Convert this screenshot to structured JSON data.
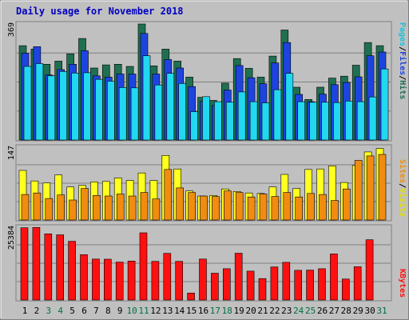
{
  "chart_data": {
    "type": "bar",
    "title": "Daily usage for November 2018",
    "days": [
      "1",
      "2",
      "3",
      "4",
      "5",
      "6",
      "7",
      "8",
      "9",
      "10",
      "11",
      "12",
      "13",
      "14",
      "15",
      "16",
      "17",
      "18",
      "19",
      "20",
      "21",
      "22",
      "23",
      "24",
      "25",
      "26",
      "27",
      "28",
      "29",
      "30",
      "31"
    ],
    "weekend_days": [
      3,
      4,
      10,
      11,
      17,
      18,
      24,
      25,
      31
    ],
    "colors": {
      "background": "#c0c0c0",
      "title": "#0000c0",
      "weekday_label": "#000000",
      "weekend_label": "#007040",
      "hits": "#1f7050",
      "files": "#1e44e0",
      "pages": "#22d8f0",
      "visits": "#ffff20",
      "sites": "#f08c10",
      "kbytes": "#ff1010"
    },
    "panels": [
      {
        "id": "hits",
        "ymax_label": "369",
        "ymax": 369,
        "series_labels": [
          {
            "text": "Pages",
            "color": "#20c0d8"
          },
          {
            "text": "/",
            "color": "#000000"
          },
          {
            "text": "Files",
            "color": "#1e44e0"
          },
          {
            "text": "/",
            "color": "#000000"
          },
          {
            "text": "Hits",
            "color": "#1f7050"
          }
        ],
        "series": [
          {
            "name": "Hits",
            "color": "#1f7050",
            "values": [
              300,
              289,
              241,
              251,
              274,
              323,
              229,
              239,
              241,
              234,
              369,
              236,
              289,
              251,
              200,
              136,
              126,
              181,
              259,
              228,
              200,
              267,
              350,
              168,
              129,
              168,
              197,
              203,
              238,
              310,
              300
            ]
          },
          {
            "name": "Files",
            "color": "#1e44e0",
            "values": [
              276,
              297,
              207,
              224,
              241,
              284,
              204,
              200,
              210,
              210,
              339,
              210,
              256,
              229,
              170,
              123,
              110,
              159,
              237,
              198,
              179,
              245,
              310,
              145,
              122,
              146,
              176,
              183,
              201,
              268,
              280
            ]
          },
          {
            "name": "Pages",
            "color": "#22d8f0",
            "values": [
              234,
              243,
              204,
              218,
              213,
              214,
              193,
              187,
              167,
              166,
              268,
              175,
              212,
              180,
              90,
              138,
              122,
              120,
              153,
              122,
              118,
              160,
              212,
              122,
              120,
              120,
              119,
              124,
              122,
              137,
              226
            ]
          }
        ]
      },
      {
        "id": "visits",
        "ymax_label": "147",
        "ymax": 147,
        "series_labels": [
          {
            "text": "Sites",
            "color": "#f08c10"
          },
          {
            "text": "/",
            "color": "#000000"
          },
          {
            "text": "Visits",
            "color": "#e0e000"
          }
        ],
        "series": [
          {
            "name": "Visits",
            "color": "#ffff20",
            "values": [
              99,
              78,
              74,
              90,
              66,
              69,
              76,
              77,
              84,
              79,
              94,
              79,
              129,
              102,
              58,
              48,
              49,
              62,
              57,
              54,
              53,
              66,
              91,
              63,
              101,
              102,
              108,
              75,
              109,
              136,
              143
            ]
          },
          {
            "name": "Sites",
            "color": "#f08c10",
            "values": [
              51,
              54,
              43,
              50,
              40,
              63,
              49,
              48,
              52,
              48,
              55,
              42,
              101,
              64,
              55,
              48,
              47,
              58,
              55,
              46,
              52,
              47,
              55,
              46,
              53,
              51,
              39,
              62,
              119,
              128,
              131
            ]
          }
        ]
      },
      {
        "id": "kbytes",
        "ymax_label": "25384",
        "ymax": 25384,
        "series_labels": [
          {
            "text": "KBytes",
            "color": "#ff1010"
          }
        ],
        "series": [
          {
            "name": "KBytes",
            "color": "#ff1010",
            "values": [
              24914,
              25034,
              22815,
              22495,
              20255,
              15657,
              14128,
              14068,
              13088,
              13448,
              23175,
              13328,
              16097,
              13328,
              2399,
              14128,
              9237,
              10797,
              16137,
              9958,
              7398,
              11397,
              12998,
              10237,
              10317,
              10797,
              15897,
              7238,
              11477,
              20776,
              null
            ]
          }
        ]
      }
    ]
  }
}
